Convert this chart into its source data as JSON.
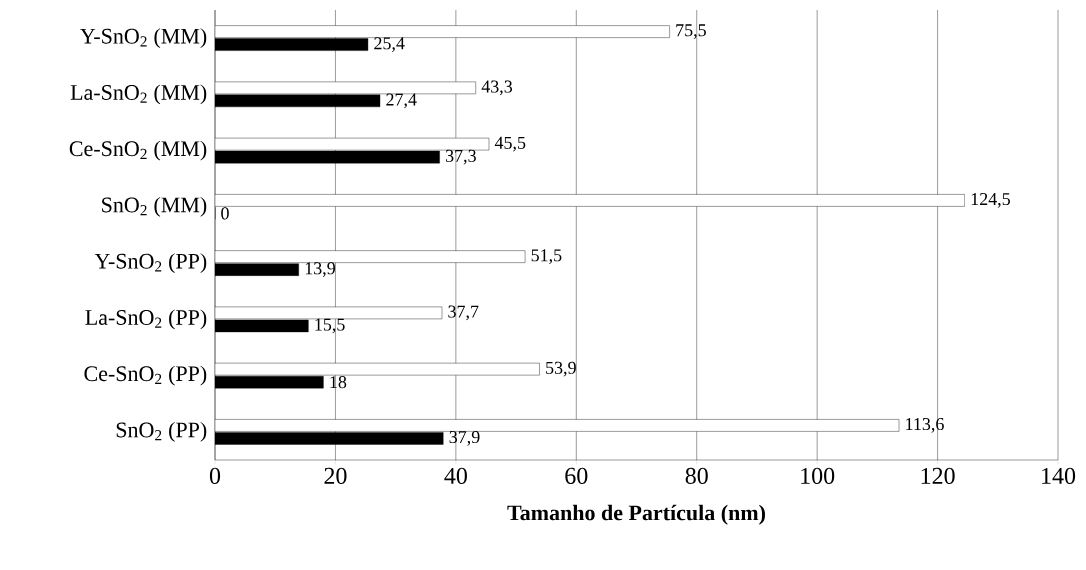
{
  "chart_data": {
    "type": "bar",
    "orientation": "horizontal",
    "xlabel": "Tamanho de Partícula (nm)",
    "categories": [
      "Y-SnO$_{2}$ (MM)",
      "La-SnO$_{2}$ (MM)",
      "Ce-SnO$_{2}$ (MM)",
      "SnO$_{2}$ (MM)",
      "Y-SnO$_{2}$ (PP)",
      "La-SnO$_{2}$ (PP)",
      "Ce-SnO$_{2}$ (PP)",
      "SnO$_{2}$ (PP)"
    ],
    "series": [
      {
        "color": "#ffffff",
        "values": [
          75.5,
          43.3,
          45.5,
          124.5,
          51.5,
          37.7,
          53.9,
          113.6
        ],
        "value_labels": [
          "75,5",
          "43,3",
          "45,5",
          "124,5",
          "51,5",
          "37,7",
          "53,9",
          "113,6"
        ]
      },
      {
        "color": "#000000",
        "values": [
          25.4,
          27.4,
          37.3,
          0,
          13.9,
          15.5,
          18,
          37.9
        ],
        "value_labels": [
          "25,4",
          "27,4",
          "37,3",
          "0",
          "13,9",
          "15,5",
          "18",
          "37,9"
        ]
      }
    ],
    "xlim": [
      0,
      140
    ],
    "xticks": [
      0,
      20,
      40,
      60,
      80,
      100,
      120,
      140
    ],
    "grid": "x"
  }
}
